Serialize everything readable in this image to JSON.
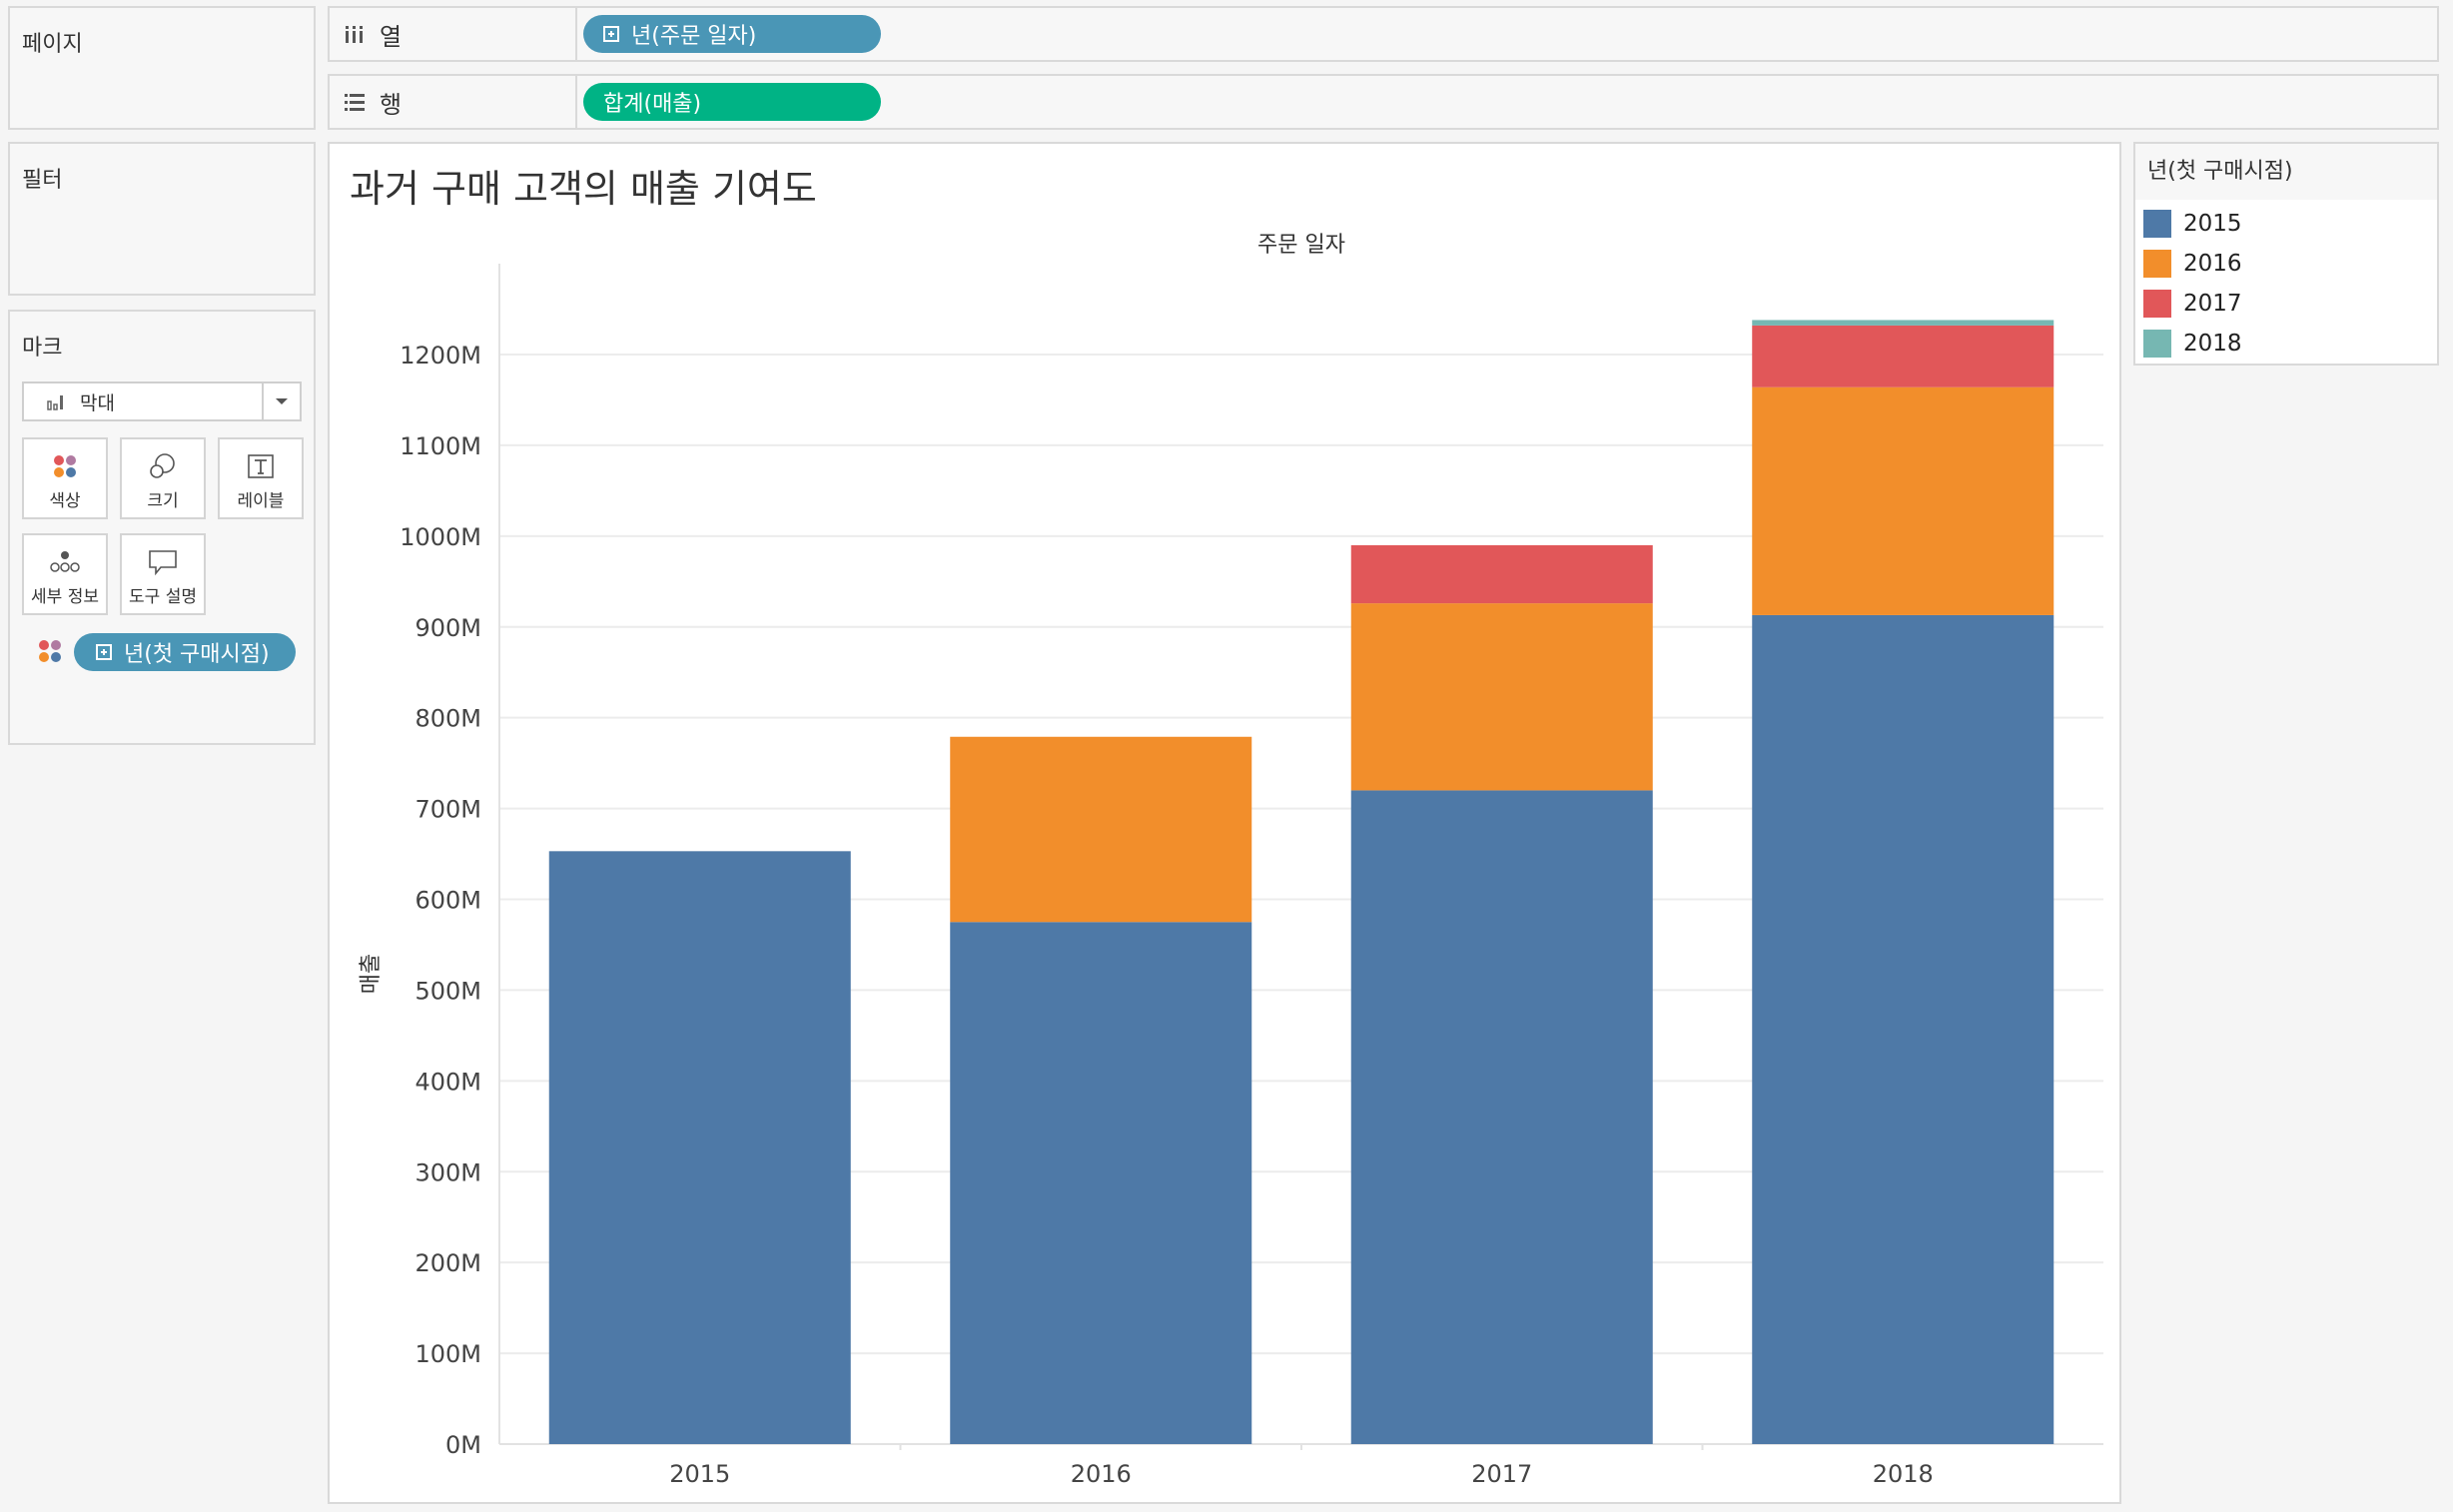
{
  "pages_shelf": {
    "title": "페이지"
  },
  "columns_shelf": {
    "label": "열",
    "pill": "년(주문 일자)"
  },
  "rows_shelf": {
    "label": "행",
    "pill": "합계(매출)"
  },
  "filters_shelf": {
    "title": "필터"
  },
  "marks_card": {
    "title": "마크",
    "mark_type": "막대",
    "buttons": [
      {
        "label": "색상",
        "icon": "color-dots-icon"
      },
      {
        "label": "크기",
        "icon": "size-circles-icon"
      },
      {
        "label": "레이블",
        "icon": "text-label-icon"
      },
      {
        "label": "세부 정보",
        "icon": "detail-dots-icon"
      },
      {
        "label": "도구 설명",
        "icon": "tooltip-bubble-icon"
      }
    ],
    "color_pill": "년(첫 구매시점)"
  },
  "legend": {
    "title": "년(첫 구매시점)",
    "items": [
      {
        "label": "2015",
        "color": "#4e79a7"
      },
      {
        "label": "2016",
        "color": "#f28e2b"
      },
      {
        "label": "2017",
        "color": "#e15759"
      },
      {
        "label": "2018",
        "color": "#76b7b2"
      }
    ]
  },
  "view": {
    "title": "과거 구매 고객의 매출 기여도"
  },
  "chart_data": {
    "type": "bar",
    "stacked": true,
    "column_header": "주문 일자",
    "ylabel": "매출",
    "ylim": [
      0,
      1300
    ],
    "yticks": [
      0,
      100,
      200,
      300,
      400,
      500,
      600,
      700,
      800,
      900,
      1000,
      1100,
      1200
    ],
    "ytick_labels": [
      "0M",
      "100M",
      "200M",
      "300M",
      "400M",
      "500M",
      "600M",
      "700M",
      "800M",
      "900M",
      "1000M",
      "1100M",
      "1200M"
    ],
    "categories": [
      "2015",
      "2016",
      "2017",
      "2018"
    ],
    "series": [
      {
        "name": "2015",
        "color": "#4e79a7",
        "values": [
          653,
          575,
          720,
          913
        ]
      },
      {
        "name": "2016",
        "color": "#f28e2b",
        "values": [
          0,
          204,
          206,
          251
        ]
      },
      {
        "name": "2017",
        "color": "#e15759",
        "values": [
          0,
          0,
          64,
          68
        ]
      },
      {
        "name": "2018",
        "color": "#76b7b2",
        "values": [
          0,
          0,
          0,
          6
        ]
      }
    ],
    "grid": true
  }
}
